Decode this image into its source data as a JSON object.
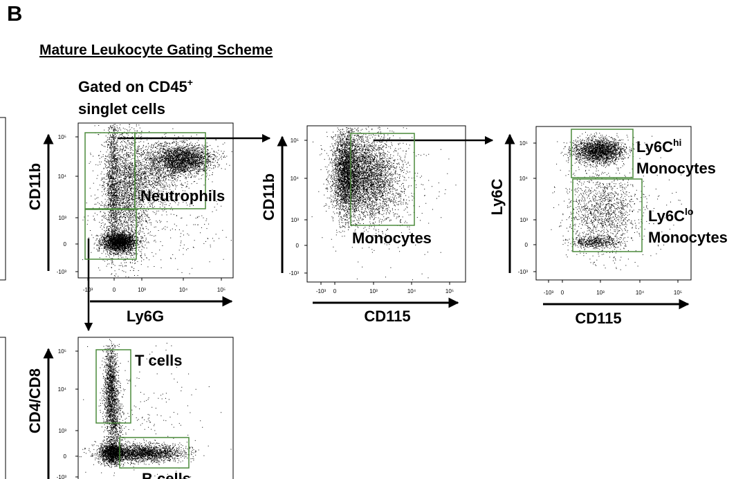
{
  "panel_label": "B",
  "title": "Mature Leukocyte Gating Scheme",
  "gate_note": {
    "text": "Gated on CD45",
    "sup": "+",
    "line2": "singlet cells"
  },
  "plots": [
    {
      "y_label": "CD11b",
      "x_label": "Ly6G",
      "y_ticks": [
        "10⁵",
        "10⁴",
        "10³",
        "0",
        "-10³"
      ],
      "x_ticks": [
        "-10³",
        "0",
        "10³",
        "10⁴",
        "10⁵"
      ],
      "gates": [
        {
          "text": "Neutrophils"
        }
      ]
    },
    {
      "y_label": "CD11b",
      "x_label": "CD115",
      "y_ticks": [
        "10⁵",
        "10⁴",
        "10³",
        "0",
        "-10³"
      ],
      "x_ticks": [
        "-10³",
        "0",
        "10³",
        "10⁴",
        "10⁵"
      ],
      "gates": [
        {
          "text": "Monocytes"
        }
      ]
    },
    {
      "y_label": "Ly6C",
      "x_label": "CD115",
      "y_ticks": [
        "10⁵",
        "10⁴",
        "10³",
        "0",
        "-10³"
      ],
      "x_ticks": [
        "-10³",
        "0",
        "10³",
        "10⁴",
        "10⁵"
      ],
      "gates": [
        {
          "text": "Ly6C",
          "sup": "hi",
          "line2": "Monocytes"
        },
        {
          "text": "Ly6C",
          "sup": "lo",
          "line2": "Monocytes"
        }
      ]
    },
    {
      "y_label": "CD4/CD8",
      "y_ticks": [
        "10⁵",
        "10⁴",
        "10³",
        "0",
        "-10³"
      ],
      "gates": [
        {
          "text": "T cells"
        },
        {
          "text": "B cells"
        }
      ]
    }
  ]
}
